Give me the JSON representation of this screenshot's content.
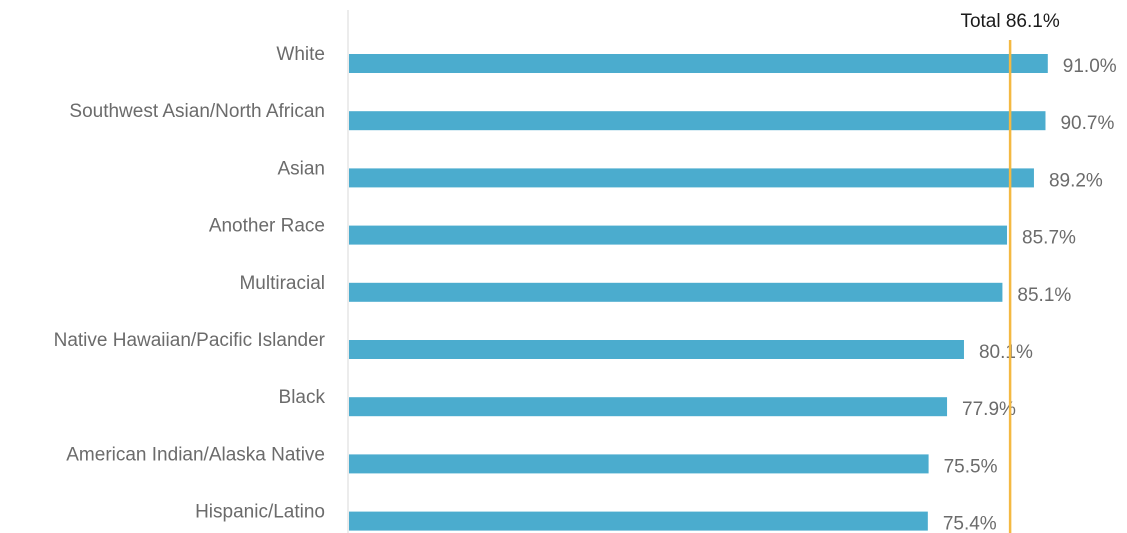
{
  "chart_data": {
    "type": "bar",
    "orientation": "horizontal",
    "categories": [
      "White",
      "Southwest Asian/North African",
      "Asian",
      "Another Race",
      "Multiracial",
      "Native Hawaiian/Pacific Islander",
      "Black",
      "American Indian/Alaska Native",
      "Hispanic/Latino"
    ],
    "values": [
      91.0,
      90.7,
      89.2,
      85.7,
      85.1,
      80.1,
      77.9,
      75.5,
      75.4
    ],
    "value_labels": [
      "91.0%",
      "90.7%",
      "89.2%",
      "85.7%",
      "85.1%",
      "80.1%",
      "77.9%",
      "75.5%",
      "75.4%"
    ],
    "reference_line": {
      "value": 86.1,
      "label": "Total 86.1%"
    },
    "xlim": [
      0,
      100
    ],
    "grid": false,
    "bar_color": "#4bacce",
    "reference_color": "#f4b942",
    "axis_color": "#d9d9d9"
  }
}
